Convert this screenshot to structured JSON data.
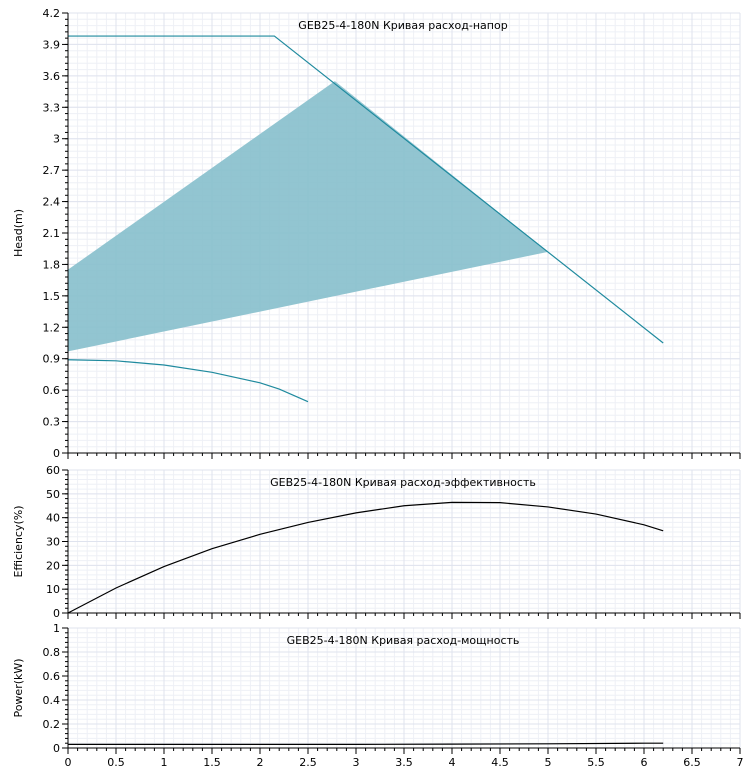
{
  "chart_data": [
    {
      "id": "head",
      "type": "line",
      "title": "GEB25-4-180N Кривая расход-напор",
      "xlabel": "",
      "ylabel": "Head(m)",
      "xlim": [
        0,
        7
      ],
      "ylim": [
        0,
        4.2
      ],
      "x_ticks": [
        "0",
        "0.5",
        "1",
        "1.5",
        "2",
        "2.5",
        "3",
        "3.5",
        "4",
        "4.5",
        "5",
        "5.5",
        "6",
        "6.5",
        "7"
      ],
      "y_ticks": [
        "0",
        "0.3",
        "0.6",
        "0.9",
        "1.2",
        "1.5",
        "1.8",
        "2.1",
        "2.4",
        "2.7",
        "3",
        "3.3",
        "3.6",
        "3.9",
        "4.2"
      ],
      "grid": true,
      "colors": {
        "curve": "#1f8a9e",
        "region": "#86bfcc",
        "low_curve": "#1f8a9e"
      },
      "series": [
        {
          "points": [
            [
              0,
              3.98
            ],
            [
              2.15,
              3.98
            ],
            [
              6.2,
              1.05
            ]
          ]
        },
        {
          "points": [
            [
              0,
              0.89
            ],
            [
              0.5,
              0.88
            ],
            [
              1,
              0.84
            ],
            [
              1.5,
              0.77
            ],
            [
              2,
              0.67
            ],
            [
              2.2,
              0.61
            ],
            [
              2.5,
              0.49
            ]
          ]
        }
      ],
      "region": [
        [
          0,
          1.75
        ],
        [
          2.78,
          3.55
        ],
        [
          5.0,
          1.92
        ],
        [
          0,
          0.97
        ]
      ]
    },
    {
      "id": "efficiency",
      "type": "line",
      "title": "GEB25-4-180N Кривая расход-эффективность",
      "xlabel": "",
      "ylabel": "Efficiency(%)",
      "xlim": [
        0,
        7
      ],
      "ylim": [
        0,
        60
      ],
      "y_ticks": [
        "0",
        "10",
        "20",
        "30",
        "40",
        "50",
        "60"
      ],
      "grid": true,
      "colors": {
        "curve": "#000000"
      },
      "series": [
        {
          "points": [
            [
              0,
              0
            ],
            [
              0.5,
              10.5
            ],
            [
              1,
              19.5
            ],
            [
              1.5,
              27
            ],
            [
              2,
              33
            ],
            [
              2.5,
              38
            ],
            [
              3,
              42
            ],
            [
              3.5,
              45
            ],
            [
              4,
              46.4
            ],
            [
              4.5,
              46.3
            ],
            [
              5,
              44.5
            ],
            [
              5.5,
              41.5
            ],
            [
              6,
              37
            ],
            [
              6.2,
              34.5
            ]
          ]
        }
      ]
    },
    {
      "id": "power",
      "type": "line",
      "title": "GEB25-4-180N Кривая расход-мощность",
      "xlabel": "",
      "ylabel": "Power(kW)",
      "xlim": [
        0,
        7
      ],
      "ylim": [
        0,
        1
      ],
      "x_ticks": [
        "0",
        "0.5",
        "1",
        "1.5",
        "2",
        "2.5",
        "3",
        "3.5",
        "4",
        "4.5",
        "5",
        "5.5",
        "6",
        "6.5",
        "7"
      ],
      "y_ticks": [
        "0",
        "0.2",
        "0.4",
        "0.6",
        "0.8",
        "1"
      ],
      "grid": true,
      "colors": {
        "curve": "#000000"
      },
      "series": [
        {
          "points": [
            [
              0,
              0.03
            ],
            [
              1,
              0.03
            ],
            [
              2,
              0.03
            ],
            [
              3,
              0.03
            ],
            [
              4,
              0.032
            ],
            [
              5,
              0.035
            ],
            [
              6,
              0.04
            ],
            [
              6.2,
              0.04
            ]
          ]
        }
      ]
    }
  ]
}
